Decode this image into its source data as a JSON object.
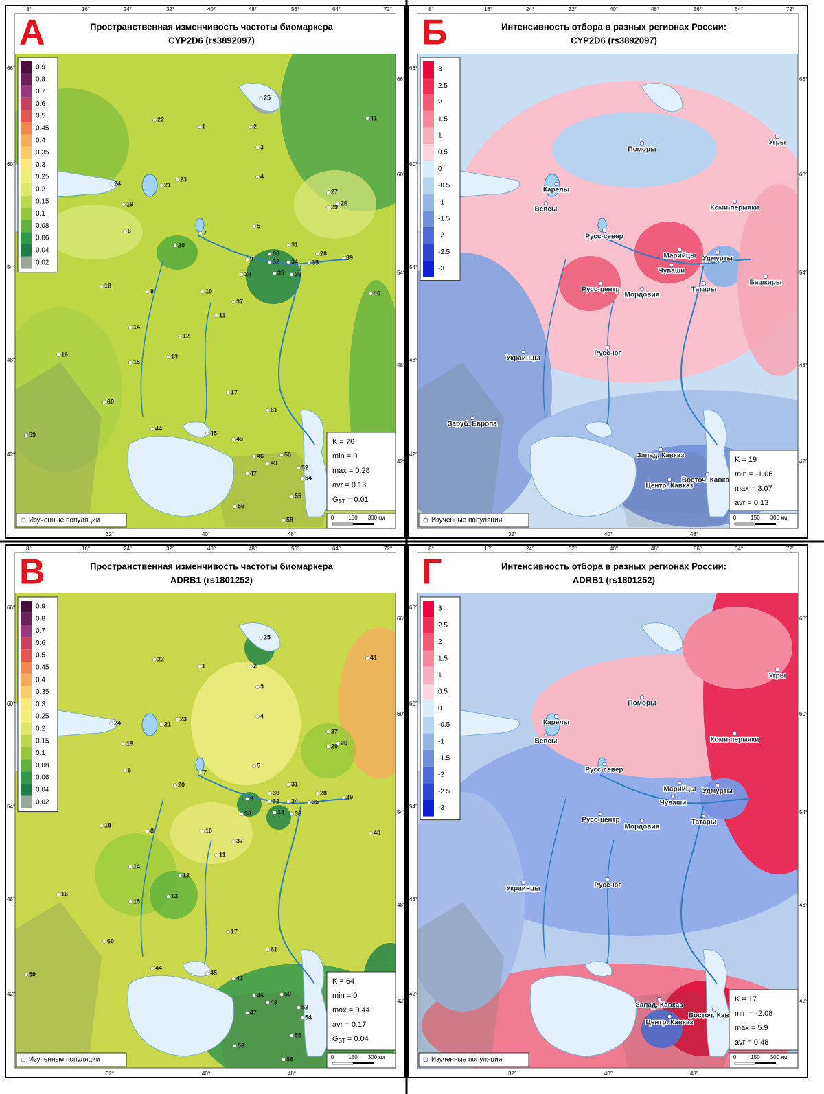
{
  "graticule": {
    "top": [
      "8°",
      "16°",
      "24°",
      "32°",
      "40°",
      "48°",
      "56°",
      "64°",
      "72°"
    ],
    "bottom": [
      "32°",
      "40°",
      "48°"
    ],
    "lat": [
      "66°",
      "60°",
      "54°",
      "48°",
      "42°"
    ]
  },
  "freq_legend": [
    "0.9",
    "0.8",
    "0.7",
    "0.6",
    "0.5",
    "0.45",
    "0.4",
    "0.35",
    "0.3",
    "0.25",
    "0.2",
    "0.15",
    "0.1",
    "0.08",
    "0.06",
    "0.04",
    "0.02"
  ],
  "sel_legend": [
    "3",
    "2.5",
    "2",
    "1.5",
    "1",
    "0.5",
    "0",
    "-0.5",
    "-1",
    "-1.5",
    "-2",
    "-2.5",
    "-3"
  ],
  "populations": [
    "1",
    "2",
    "3",
    "4",
    "5",
    "6",
    "7",
    "8",
    "9",
    "10",
    "11",
    "12",
    "13",
    "14",
    "15",
    "16",
    "17",
    "18",
    "19",
    "20",
    "21",
    "22",
    "23",
    "24",
    "25",
    "26",
    "27",
    "28",
    "29",
    "30",
    "31",
    "32",
    "33",
    "34",
    "35",
    "36",
    "37",
    "38",
    "39",
    "40",
    "41",
    "43",
    "44",
    "45",
    "46",
    "47",
    "49",
    "50",
    "52",
    "54",
    "55",
    "56",
    "58",
    "59",
    "60",
    "61"
  ],
  "note": "Изученные популяции",
  "scale": [
    "0",
    "150",
    "300 км"
  ],
  "panels": [
    {
      "letter": "А",
      "title": [
        "Пространственная изменчивость частоты биомаркера",
        "CYP2D6 (rs3892097)"
      ],
      "stats": [
        "K = 76",
        "min = 0",
        "max = 0.28",
        "avr = 0.13"
      ],
      "gst": {
        "symbol": "G",
        "sub": "ST",
        "value": " = 0.01"
      }
    },
    {
      "letter": "Б",
      "title": [
        "Интенсивность отбора в разных регионах России:",
        "CYP2D6 (rs3892097)"
      ],
      "stats": [
        "K = 19",
        "min = -1.06",
        "max = 3.07",
        "avr = 0.13"
      ],
      "regions": [
        "Поморы",
        "Угры",
        "Карелы",
        "Вепсы",
        "Коми-пермяки",
        "Русс-север",
        "Марийцы",
        "Удмурты",
        "Чуваши",
        "Башкиры",
        "Русс-центр",
        "Мордовия",
        "Татары",
        "Украинцы",
        "Русс-юг",
        "Заруб. Европа",
        "Запад. Кавказ",
        "Восточ. Кавказ",
        "Центр. Кавказ"
      ]
    },
    {
      "letter": "В",
      "title": [
        "Пространственная изменчивость частоты биомаркера",
        "ADRB1 (rs1801252)"
      ],
      "stats": [
        "K = 64",
        "min = 0",
        "max = 0.44",
        "avr = 0.17"
      ],
      "gst": {
        "symbol": "G",
        "sub": "ST",
        "value": " = 0.04"
      }
    },
    {
      "letter": "Г",
      "title": [
        "Интенсивность отбора в разных регионах России:",
        "ADRB1 (rs1801252)"
      ],
      "stats": [
        "K = 17",
        "min = -2.08",
        "max = 5.9",
        "avr = 0.48"
      ],
      "regions": [
        "Поморы",
        "Угры",
        "Карелы",
        "Вепсы",
        "Коми-пермяки",
        "Русс-север",
        "Марийцы",
        "Удмурты",
        "Чуваши",
        "Русс-центр",
        "Мордовия",
        "Татары",
        "Украинцы",
        "Русс-юг",
        "Запад. Кавказ",
        "Восточ. Кавказ",
        "Центр. Кавказ"
      ]
    }
  ]
}
